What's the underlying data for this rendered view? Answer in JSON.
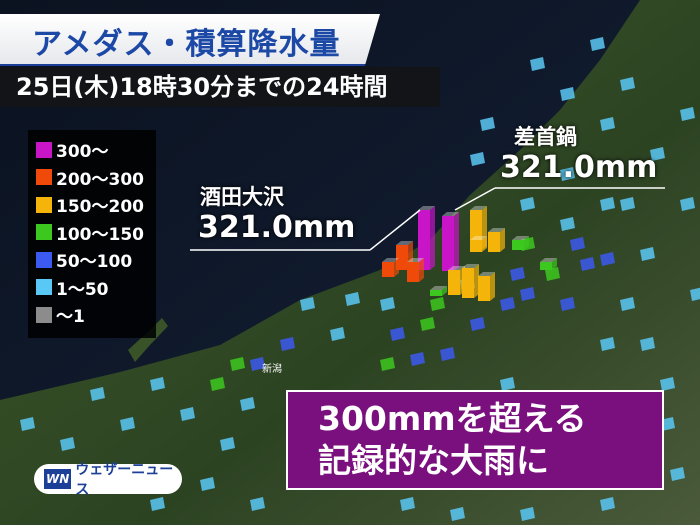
{
  "header": {
    "title": "アメダス・積算降水量",
    "subtitle": "25日(木)18時30分までの24時間"
  },
  "legend": {
    "items": [
      {
        "label": "300〜",
        "color": "#c815c8"
      },
      {
        "label": "200〜300",
        "color": "#f04a0a"
      },
      {
        "label": "150〜200",
        "color": "#f5b40a"
      },
      {
        "label": "100〜150",
        "color": "#3cc81e"
      },
      {
        "label": "50〜100",
        "color": "#3c5af0"
      },
      {
        "label": "1〜50",
        "color": "#5ac8f5"
      },
      {
        "label": "〜1",
        "color": "#8c8c8c"
      }
    ]
  },
  "annotations": [
    {
      "place": "酒田大沢",
      "value": "321.0mm"
    },
    {
      "place": "差首鍋",
      "value": "321.0mm"
    }
  ],
  "map_labels": {
    "niigata": "新潟"
  },
  "message": {
    "line1": "300mmを超える",
    "line2": "記録的な大雨に"
  },
  "brand": {
    "mark": "WN",
    "name": "ウェザーニュース"
  }
}
